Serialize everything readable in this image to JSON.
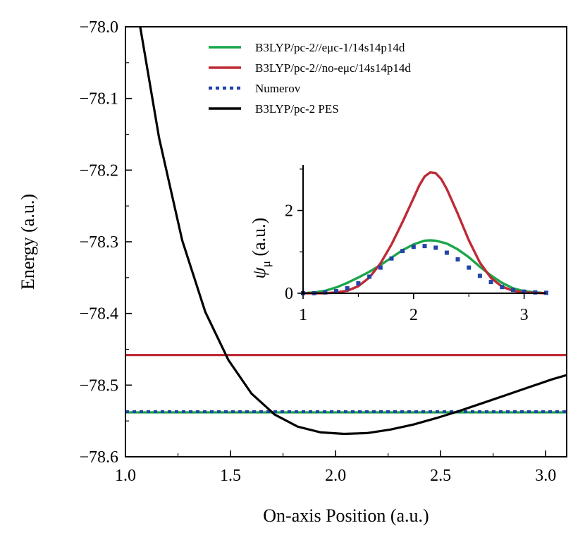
{
  "chart_data": [
    {
      "type": "line",
      "xlabel": "On-axis Position  (a.u.)",
      "ylabel": "Energy (a.u.)",
      "xlim": [
        1.0,
        3.1
      ],
      "ylim": [
        -78.6,
        -78.0
      ],
      "xticks": [
        1.0,
        1.5,
        2.0,
        2.5,
        3.0
      ],
      "xtick_labels": [
        "1.0",
        "1.5",
        "2.0",
        "2.5",
        "3.0"
      ],
      "yticks": [
        -78.0,
        -78.1,
        -78.2,
        -78.3,
        -78.4,
        -78.5,
        -78.6
      ],
      "ytick_labels": [
        "−78.0",
        "−78.1",
        "−78.2",
        "−78.3",
        "−78.4",
        "−78.5",
        "−78.6"
      ],
      "legend_position": "top-right",
      "series": [
        {
          "name": "B3LYP/pc-2//eμc-1/14s14p14d",
          "color": "#1aa64a",
          "style": "solid",
          "x": [
            1.0,
            3.1
          ],
          "y": [
            -78.538,
            -78.538
          ]
        },
        {
          "name": "B3LYP/pc-2//no-eμc/14s14p14d",
          "color": "#be2a35",
          "style": "solid",
          "x": [
            1.0,
            3.1
          ],
          "y": [
            -78.458,
            -78.458
          ]
        },
        {
          "name": "Numerov",
          "color": "#2245a6",
          "style": "dotted",
          "x": [
            1.0,
            3.1
          ],
          "y": [
            -78.537,
            -78.537
          ]
        },
        {
          "name": "B3LYP/pc-2 PES",
          "color": "#000000",
          "style": "solid",
          "x": [
            1.07,
            1.16,
            1.27,
            1.38,
            1.49,
            1.6,
            1.71,
            1.82,
            1.93,
            2.04,
            2.15,
            2.26,
            2.37,
            2.48,
            2.59,
            2.7,
            2.81,
            2.92,
            3.03,
            3.1
          ],
          "y": [
            -78.0,
            -78.155,
            -78.298,
            -78.398,
            -78.465,
            -78.512,
            -78.541,
            -78.558,
            -78.566,
            -78.568,
            -78.567,
            -78.562,
            -78.555,
            -78.546,
            -78.536,
            -78.525,
            -78.514,
            -78.503,
            -78.492,
            -78.486
          ]
        }
      ]
    },
    {
      "type": "line",
      "xlabel": "",
      "ylabel": "ψ",
      "ylabel_sub": "μ",
      "ylabel_unit": " (a.u.)",
      "xlim": [
        1.0,
        3.2
      ],
      "ylim": [
        0,
        3.1
      ],
      "xticks": [
        1,
        2,
        3
      ],
      "xtick_labels": [
        "1",
        "2",
        "3"
      ],
      "yticks": [
        0,
        2
      ],
      "ytick_labels": [
        "0",
        "2"
      ],
      "y_minor_ticks": [
        1,
        3
      ],
      "series": [
        {
          "name": "B3LYP/pc-2//eμc-1/14s14p14d",
          "color": "#1aa64a",
          "style": "solid",
          "x": [
            1.0,
            1.1,
            1.2,
            1.3,
            1.4,
            1.5,
            1.6,
            1.7,
            1.8,
            1.9,
            2.0,
            2.1,
            2.15,
            2.2,
            2.3,
            2.4,
            2.5,
            2.6,
            2.7,
            2.8,
            2.9,
            3.0,
            3.1,
            3.2
          ],
          "y": [
            0.0,
            0.02,
            0.06,
            0.14,
            0.25,
            0.38,
            0.52,
            0.68,
            0.86,
            1.04,
            1.18,
            1.27,
            1.28,
            1.27,
            1.2,
            1.06,
            0.87,
            0.64,
            0.43,
            0.25,
            0.12,
            0.05,
            0.02,
            0.0
          ]
        },
        {
          "name": "B3LYP/pc-2//no-eμc/14s14p14d",
          "color": "#be2a35",
          "style": "solid",
          "x": [
            1.0,
            1.2,
            1.3,
            1.4,
            1.5,
            1.6,
            1.7,
            1.8,
            1.9,
            2.0,
            2.05,
            2.1,
            2.15,
            2.2,
            2.25,
            2.3,
            2.4,
            2.5,
            2.6,
            2.7,
            2.8,
            2.9,
            3.0,
            3.2
          ],
          "y": [
            0.0,
            0.0,
            0.02,
            0.06,
            0.17,
            0.38,
            0.72,
            1.18,
            1.72,
            2.3,
            2.6,
            2.82,
            2.92,
            2.9,
            2.76,
            2.52,
            1.92,
            1.28,
            0.74,
            0.37,
            0.16,
            0.06,
            0.02,
            0.0
          ]
        },
        {
          "name": "Numerov",
          "color": "#2245a6",
          "style": "dotted",
          "x": [
            1.0,
            1.1,
            1.2,
            1.3,
            1.4,
            1.5,
            1.6,
            1.7,
            1.8,
            1.9,
            2.0,
            2.1,
            2.2,
            2.3,
            2.4,
            2.5,
            2.6,
            2.7,
            2.8,
            2.9,
            3.0,
            3.1,
            3.2
          ],
          "y": [
            0.0,
            0.0,
            0.02,
            0.05,
            0.12,
            0.24,
            0.4,
            0.62,
            0.84,
            1.02,
            1.12,
            1.14,
            1.1,
            0.98,
            0.82,
            0.62,
            0.42,
            0.27,
            0.15,
            0.08,
            0.04,
            0.02,
            0.01
          ]
        }
      ]
    }
  ]
}
